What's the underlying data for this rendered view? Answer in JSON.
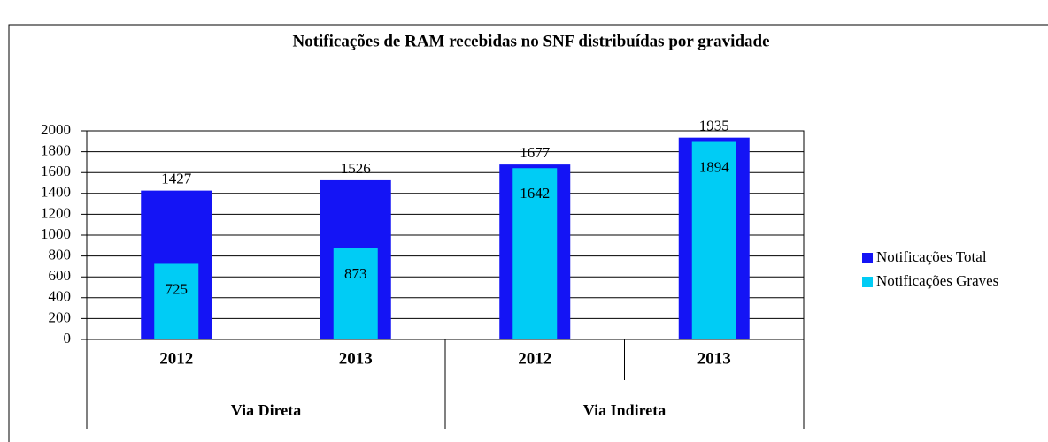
{
  "chart_data": {
    "type": "bar",
    "title": "Notificações de RAM recebidas no SNF distribuídas por gravidade",
    "categories": [
      "2012",
      "2013",
      "2012",
      "2013"
    ],
    "groups": [
      "Via Direta",
      "Via Indireta"
    ],
    "series": [
      {
        "name": "Notificações Total",
        "color": "#1414f5",
        "values": [
          1427,
          1526,
          1677,
          1935
        ]
      },
      {
        "name": "Notificações Graves",
        "color": "#00ccf5",
        "values": [
          725,
          873,
          1642,
          1894
        ]
      }
    ],
    "ylim": [
      0,
      2000
    ],
    "yticks": [
      0,
      200,
      400,
      600,
      800,
      1000,
      1200,
      1400,
      1600,
      1800,
      2000
    ],
    "grid": true,
    "legend": "right"
  }
}
